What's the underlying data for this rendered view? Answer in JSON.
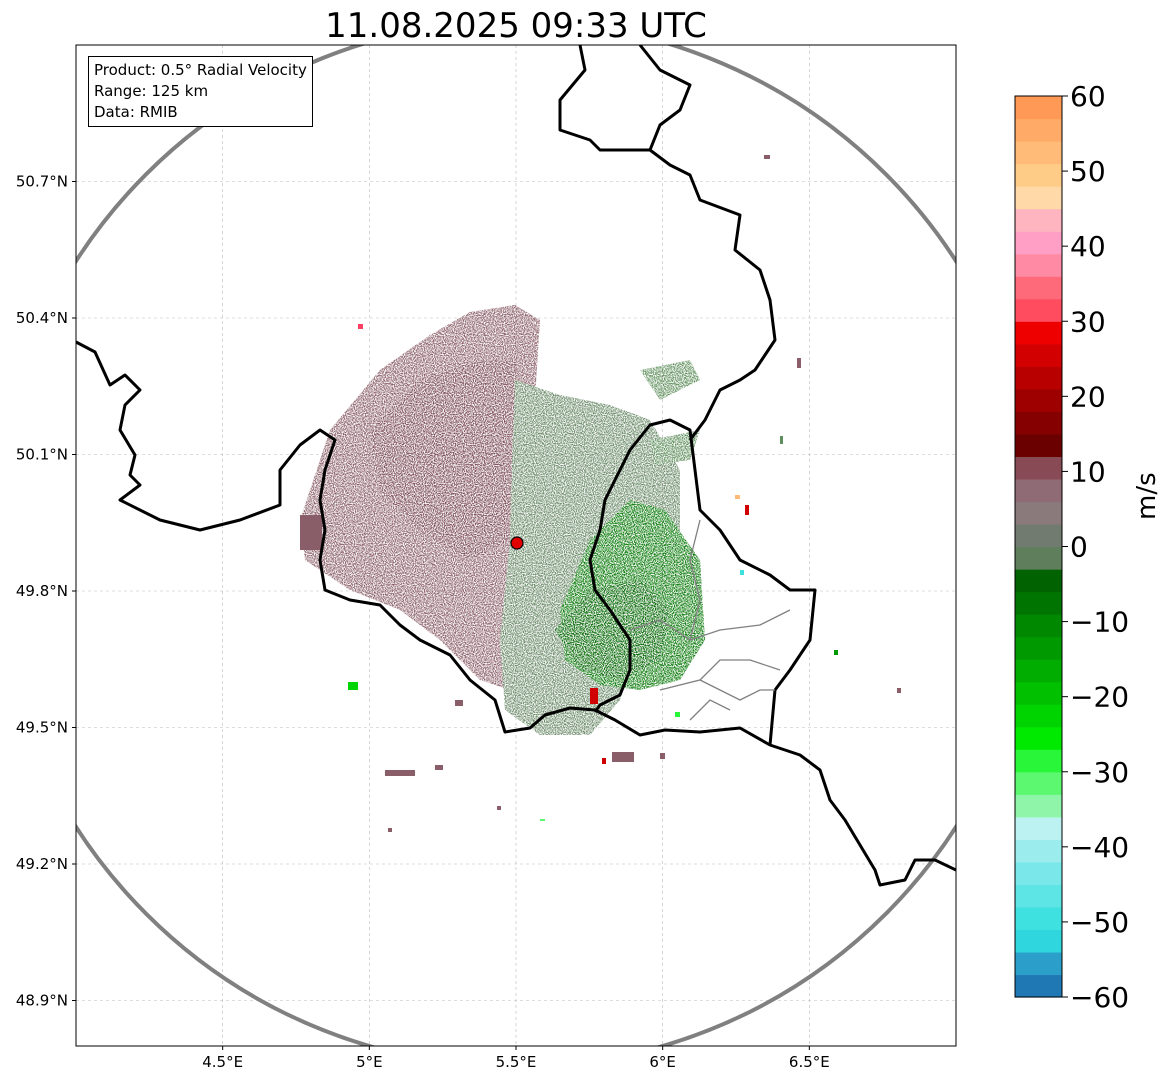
{
  "title": "11.08.2025 09:33 UTC",
  "info_box": {
    "product": "Product: 0.5° Radial Velocity",
    "range": "Range: 125 km",
    "data": "Data: RMIB"
  },
  "axes": {
    "lat_ticks": [
      "50.7°N",
      "50.4°N",
      "50.1°N",
      "49.8°N",
      "49.5°N",
      "49.2°N",
      "48.9°N"
    ],
    "lon_ticks": [
      "4.5°E",
      "5°E",
      "5.5°E",
      "6°E",
      "6.5°E"
    ],
    "lon_range": [
      4.0,
      7.0
    ],
    "lat_range": [
      48.8,
      51.0
    ],
    "grid": true
  },
  "radar_site": {
    "lon": 5.5,
    "lat": 49.915,
    "marker_color": "#e00000"
  },
  "colorbar": {
    "label": "m/s",
    "min": -60,
    "max": 60,
    "ticks": [
      "60",
      "50",
      "40",
      "30",
      "20",
      "10",
      "0",
      "−10",
      "−20",
      "−30",
      "−40",
      "−50",
      "−60"
    ],
    "colors_bottom_to_top": [
      "#1f77b4",
      "#2b9fc9",
      "#2fd6de",
      "#3ee0e0",
      "#5de4e4",
      "#7ae8ea",
      "#9aeced",
      "#bdf2f2",
      "#8ff5a8",
      "#5cf870",
      "#29f539",
      "#00ea00",
      "#00d400",
      "#00c000",
      "#00ad00",
      "#009a00",
      "#008800",
      "#007400",
      "#006200",
      "#5f7f5c",
      "#727b6f",
      "#8a7a7c",
      "#8f6b76",
      "#884a55",
      "#6b0000",
      "#850000",
      "#9e0000",
      "#b80000",
      "#d20000",
      "#ee0000",
      "#ff4c5e",
      "#ff6a7a",
      "#ff8aa4",
      "#ff9fc6",
      "#ffb5c0",
      "#ffd9a8",
      "#ffcc88",
      "#ffbb77",
      "#ffaa66",
      "#ff9955"
    ]
  },
  "colors": {
    "border": "#000000",
    "range_ring": "#808080",
    "grid": "#bbbbbb"
  }
}
